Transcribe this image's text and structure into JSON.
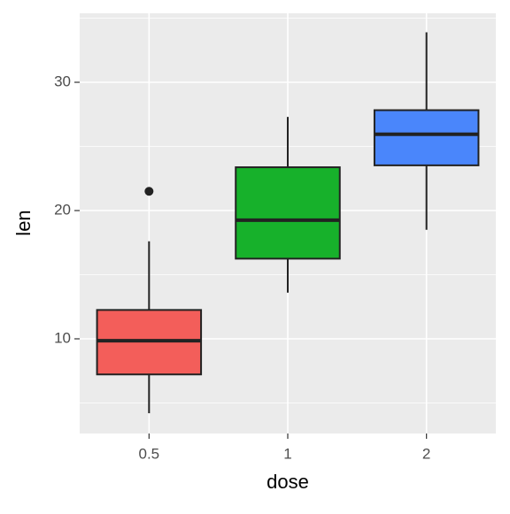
{
  "chart_data": {
    "type": "boxplot",
    "x_label": "dose",
    "y_label": "len",
    "categories": [
      "0.5",
      "1",
      "2"
    ],
    "colors": [
      "#f35e5a",
      "#17b12b",
      "#4a86fb"
    ],
    "boxes": [
      {
        "min": 4.2,
        "q1": 7.225,
        "median": 9.85,
        "q3": 12.25,
        "max": 17.6,
        "outliers": [
          21.5
        ]
      },
      {
        "min": 13.6,
        "q1": 16.25,
        "median": 19.25,
        "q3": 23.375,
        "max": 27.3,
        "outliers": []
      },
      {
        "min": 18.5,
        "q1": 23.525,
        "median": 25.95,
        "q3": 27.825,
        "max": 33.9,
        "outliers": []
      }
    ],
    "ylim": [
      2.62,
      35.38
    ],
    "yticks": [
      10,
      20,
      30
    ],
    "minor_yticks": [
      5,
      15,
      25,
      35
    ],
    "grid": true
  }
}
